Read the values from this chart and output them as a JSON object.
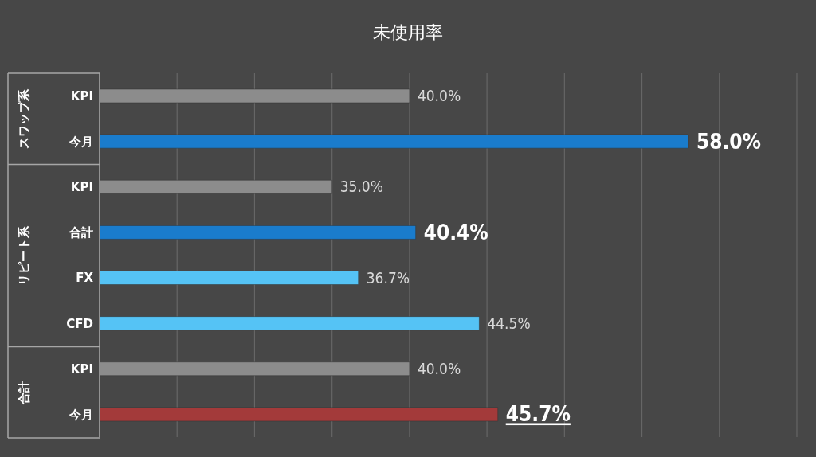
{
  "chart_data": {
    "type": "bar",
    "orientation": "horizontal",
    "title": "未使用率",
    "categories": [
      "KPI",
      "今月",
      "KPI",
      "合計",
      "FX",
      "CFD",
      "KPI",
      "今月"
    ],
    "values": [
      40.0,
      58.0,
      35.0,
      40.4,
      36.7,
      44.5,
      40.0,
      45.7
    ],
    "colors": [
      "#8c8c8c",
      "#1a7ccc",
      "#8c8c8c",
      "#1a7ccc",
      "#55c3f5",
      "#55c3f5",
      "#8c8c8c",
      "#a33a3a"
    ],
    "xlim": [
      20,
      65
    ],
    "xticks": [
      {
        "value": 20,
        "label": null
      },
      {
        "value": 25,
        "label": null
      },
      {
        "value": 30,
        "label": null
      },
      {
        "value": 35,
        "label": null
      },
      {
        "value": 40,
        "label": null
      },
      {
        "value": 45,
        "label": null
      },
      {
        "value": 50,
        "label": null
      },
      {
        "value": 55,
        "label": null
      },
      {
        "value": 60,
        "label": null
      },
      {
        "value": 65,
        "label": null
      }
    ],
    "value_labels": [
      "40.0%",
      "58.0%",
      "35.0%",
      "40.4%",
      "36.7%",
      "44.5%",
      "40.0%",
      "45.7%"
    ],
    "tick_labels": "y",
    "grid": "x",
    "annotations": [
      "スワップ系",
      "リピート系",
      "合計"
    ]
  }
}
